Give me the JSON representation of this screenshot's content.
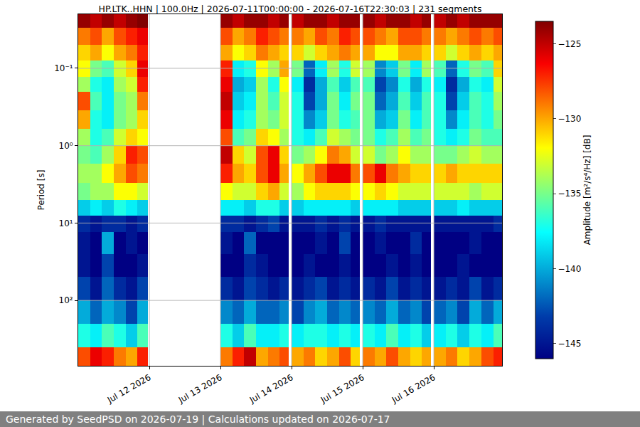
{
  "chart_data": {
    "type": "heatmap",
    "title": "HP.LTK..HHN | 100.0Hz | 2026-07-11T00:00:00 - 2026-07-16T22:30:03 | 231 segments",
    "ylabel": "Period [s]",
    "colorbar_label": "Amplitude [m²/s⁴/Hz] [dB]",
    "footer": "Generated by SeedPSD on 2026-07-19 | Calculations updated on 2026-07-17",
    "log": "y",
    "grid": true,
    "xlim": [
      "2026-07-11 00:00",
      "2026-07-16 23:00"
    ],
    "xticks": [
      {
        "value": "2026-07-12 00:00",
        "label": "Jul 12 2026"
      },
      {
        "value": "2026-07-13 00:00",
        "label": "Jul 13 2026"
      },
      {
        "value": "2026-07-14 00:00",
        "label": "Jul 14 2026"
      },
      {
        "value": "2026-07-15 00:00",
        "label": "Jul 15 2026"
      },
      {
        "value": "2026-07-16 00:00",
        "label": "Jul 16 2026"
      }
    ],
    "ylim": [
      0.02,
      700
    ],
    "yticks": [
      {
        "value": 0.1,
        "label": "10⁻¹"
      },
      {
        "value": 1,
        "label": "10⁰"
      },
      {
        "value": 10,
        "label": "10¹"
      },
      {
        "value": 100,
        "label": "10²"
      }
    ],
    "zlim": [
      -146,
      -123.5
    ],
    "zticks": [
      {
        "value": -125,
        "label": "−125"
      },
      {
        "value": -130,
        "label": "−130"
      },
      {
        "value": -135,
        "label": "−135"
      },
      {
        "value": -140,
        "label": "−140"
      },
      {
        "value": -145,
        "label": "−145"
      }
    ],
    "time_bins": [
      "2026-07-11 00:00",
      "2026-07-11 04:00",
      "2026-07-11 08:00",
      "2026-07-11 12:00",
      "2026-07-11 16:00",
      "2026-07-11 20:00",
      "2026-07-11 23:30",
      "2026-07-13 00:00",
      "2026-07-13 04:00",
      "2026-07-13 08:00",
      "2026-07-13 12:00",
      "2026-07-13 16:00",
      "2026-07-13 20:00",
      "2026-07-13 23:00",
      "2026-07-14 00:00",
      "2026-07-14 04:00",
      "2026-07-14 08:00",
      "2026-07-14 12:00",
      "2026-07-14 16:00",
      "2026-07-14 20:00",
      "2026-07-14 23:00",
      "2026-07-15 00:00",
      "2026-07-15 04:00",
      "2026-07-15 08:00",
      "2026-07-15 12:00",
      "2026-07-15 16:00",
      "2026-07-15 20:00",
      "2026-07-15 23:00",
      "2026-07-16 00:00",
      "2026-07-16 04:00",
      "2026-07-16 08:00",
      "2026-07-16 12:00",
      "2026-07-16 16:00",
      "2026-07-16 20:00",
      "2026-07-16 23:00"
    ],
    "period_bins": [
      0.02,
      0.03,
      0.05,
      0.08,
      0.13,
      0.2,
      0.35,
      0.6,
      1,
      1.7,
      3,
      5,
      8,
      13,
      25,
      50,
      100,
      200,
      400,
      700
    ],
    "z": [
      [
        -124,
        -125,
        -124,
        -125,
        -124,
        -123.5,
        null,
        -124,
        -125,
        -124,
        -124,
        -125,
        -124,
        null,
        -125,
        -124,
        -124,
        -125,
        -124,
        -124,
        null,
        -124,
        -125,
        -124,
        -124,
        -125,
        -124,
        null,
        -125,
        -124,
        -125,
        -124,
        -124,
        -124
      ],
      [
        -129,
        -128,
        -130,
        -128,
        -127,
        -126,
        null,
        -128,
        -130,
        -129,
        -127,
        -128,
        -129,
        null,
        -129,
        -130,
        -128,
        -129,
        -127,
        -128,
        null,
        -128,
        -129,
        -130,
        -128,
        -128,
        -129,
        null,
        -129,
        -130,
        -129,
        -128,
        -129,
        -128
      ],
      [
        -131,
        -130,
        -132,
        -130,
        -129,
        -127,
        null,
        -130,
        -132,
        -131,
        -129,
        -130,
        -131,
        null,
        -131,
        -133,
        -131,
        -130,
        -129,
        -130,
        null,
        -130,
        -132,
        -132,
        -130,
        -130,
        -131,
        null,
        -131,
        -133,
        -131,
        -130,
        -131,
        -130
      ],
      [
        -132,
        -135,
        -136,
        -133,
        -131,
        -126,
        null,
        -127,
        -138,
        -137,
        -132,
        -134,
        -130,
        null,
        -135,
        -142,
        -138,
        -134,
        -137,
        -133,
        null,
        -134,
        -141,
        -139,
        -135,
        -138,
        -134,
        null,
        -136,
        -142,
        -137,
        -135,
        -136,
        -131
      ],
      [
        -134,
        -137,
        -138,
        -134,
        -133,
        -127,
        null,
        -126,
        -140,
        -139,
        -134,
        -137,
        -132,
        null,
        -138,
        -144,
        -140,
        -136,
        -139,
        -136,
        null,
        -136,
        -143,
        -141,
        -137,
        -140,
        -137,
        null,
        -138,
        -144,
        -140,
        -137,
        -138,
        -133
      ],
      [
        -128,
        -136,
        -138,
        -135,
        -134,
        -129,
        null,
        -125,
        -139,
        -138,
        -134,
        -136,
        -133,
        null,
        -137,
        -143,
        -140,
        -135,
        -138,
        -135,
        null,
        -135,
        -142,
        -140,
        -136,
        -139,
        -136,
        null,
        -137,
        -143,
        -139,
        -136,
        -137,
        -134
      ],
      [
        -130,
        -137,
        -138,
        -135,
        -134,
        -131,
        null,
        -126,
        -138,
        -137,
        -134,
        -135,
        -133,
        null,
        -137,
        -141,
        -139,
        -135,
        -137,
        -136,
        null,
        -135,
        -140,
        -139,
        -135,
        -138,
        -136,
        null,
        -137,
        -141,
        -138,
        -136,
        -137,
        -135
      ],
      [
        -134,
        -137,
        -136,
        -133,
        -131,
        -132,
        null,
        -128,
        -136,
        -135,
        -131,
        -132,
        -134,
        null,
        -137,
        -138,
        -136,
        -133,
        -134,
        -135,
        null,
        -135,
        -137,
        -136,
        -134,
        -136,
        -135,
        null,
        -137,
        -138,
        -137,
        -135,
        -136,
        -136
      ],
      [
        -135,
        -136,
        -134,
        -131,
        -127,
        -128,
        null,
        -125,
        -131,
        -133,
        -128,
        -126,
        -131,
        null,
        -135,
        -134,
        -132,
        -129,
        -130,
        -133,
        null,
        -133,
        -135,
        -134,
        -132,
        -134,
        -134,
        null,
        -135,
        -135,
        -134,
        -133,
        -134,
        -134
      ],
      [
        -134,
        -134,
        -132,
        -130,
        -128,
        -129,
        null,
        -127,
        -130,
        -131,
        -128,
        -126,
        -130,
        null,
        -132,
        -130,
        -128,
        -126,
        -126,
        -129,
        null,
        -128,
        -126,
        -129,
        -130,
        -131,
        -131,
        null,
        -131,
        -130,
        -131,
        -131,
        -131,
        -131
      ],
      [
        -135,
        -134,
        -134,
        -132,
        -132,
        -133,
        null,
        -132,
        -133,
        -133,
        -131,
        -130,
        -133,
        null,
        -134,
        -132,
        -131,
        -131,
        -131,
        -132,
        null,
        -132,
        -131,
        -132,
        -133,
        -133,
        -133,
        null,
        -133,
        -133,
        -133,
        -134,
        -133,
        -133
      ],
      [
        -139,
        -138,
        -139,
        -137,
        -138,
        -139,
        null,
        -138,
        -138,
        -139,
        -137,
        -137,
        -139,
        null,
        -139,
        -138,
        -138,
        -138,
        -138,
        -139,
        null,
        -138,
        -138,
        -138,
        -139,
        -139,
        -139,
        null,
        -139,
        -139,
        -138,
        -139,
        -139,
        -139
      ],
      [
        -144,
        -145,
        -144,
        -144,
        -145,
        -144,
        null,
        -144,
        -144,
        -145,
        -144,
        -143,
        -145,
        null,
        -145,
        -145,
        -144,
        -145,
        -144,
        -145,
        null,
        -145,
        -144,
        -145,
        -145,
        -145,
        -145,
        null,
        -145,
        -145,
        -145,
        -145,
        -145,
        -144
      ],
      [
        -145,
        -146,
        -140,
        -146,
        -145,
        -146,
        null,
        -145,
        -146,
        -142,
        -146,
        -146,
        -146,
        null,
        -146,
        -146,
        -145,
        -146,
        -143,
        -146,
        null,
        -146,
        -145,
        -146,
        -146,
        -144,
        -146,
        null,
        -146,
        -146,
        -146,
        -145,
        -146,
        -146
      ],
      [
        -145,
        -146,
        -143,
        -146,
        -146,
        -145,
        null,
        -146,
        -146,
        -144,
        -145,
        -146,
        -146,
        null,
        -146,
        -145,
        -146,
        -146,
        -145,
        -146,
        null,
        -146,
        -146,
        -145,
        -146,
        -145,
        -146,
        null,
        -146,
        -146,
        -145,
        -146,
        -146,
        -146
      ],
      [
        -143,
        -145,
        -142,
        -144,
        -145,
        -143,
        null,
        -144,
        -145,
        -143,
        -144,
        -145,
        -144,
        null,
        -145,
        -144,
        -143,
        -145,
        -144,
        -145,
        null,
        -144,
        -145,
        -143,
        -145,
        -144,
        -145,
        null,
        -145,
        -144,
        -145,
        -143,
        -145,
        -144
      ],
      [
        -140,
        -142,
        -140,
        -141,
        -143,
        -140,
        null,
        -141,
        -142,
        -140,
        -142,
        -142,
        -141,
        null,
        -143,
        -141,
        -140,
        -142,
        -141,
        -142,
        null,
        -141,
        -142,
        -140,
        -142,
        -141,
        -143,
        null,
        -142,
        -141,
        -143,
        -140,
        -142,
        -140
      ],
      [
        -137,
        -138,
        -136,
        -137,
        -139,
        -136,
        null,
        -137,
        -139,
        -136,
        -138,
        -138,
        -137,
        null,
        -138,
        -137,
        -137,
        -138,
        -137,
        -138,
        null,
        -137,
        -138,
        -136,
        -138,
        -137,
        -139,
        null,
        -138,
        -137,
        -139,
        -137,
        -138,
        -136
      ],
      [
        -128,
        -126,
        -127,
        -129,
        -130,
        -127,
        null,
        -129,
        -127,
        -125,
        -130,
        -129,
        -128,
        null,
        -130,
        -129,
        -131,
        -130,
        -128,
        -131,
        null,
        -129,
        -130,
        -128,
        -130,
        -131,
        -130,
        null,
        -130,
        -129,
        -131,
        -130,
        -128,
        -127
      ]
    ]
  }
}
